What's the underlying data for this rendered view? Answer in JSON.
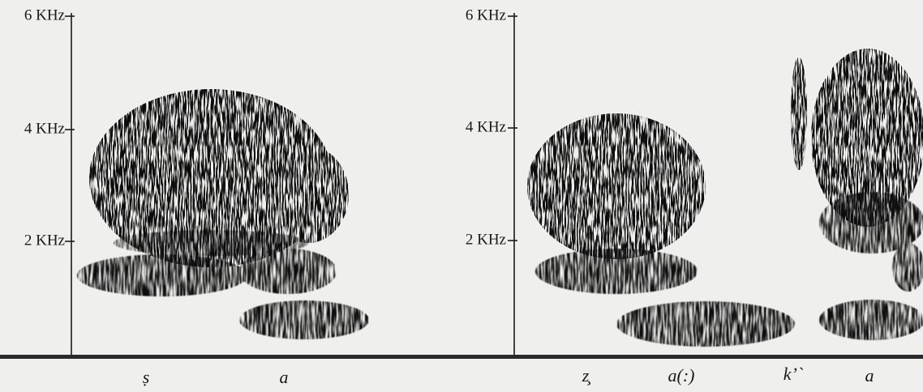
{
  "panels": [
    {
      "yticks": [
        "6 KHz",
        "4 KHz",
        "2 KHz"
      ],
      "segments": [
        "ṣ",
        "a"
      ]
    },
    {
      "yticks": [
        "6 KHz",
        "4 KHz",
        "2 KHz"
      ],
      "segments": [
        "z̧",
        "a(:)",
        "k’`",
        "a"
      ]
    }
  ]
}
